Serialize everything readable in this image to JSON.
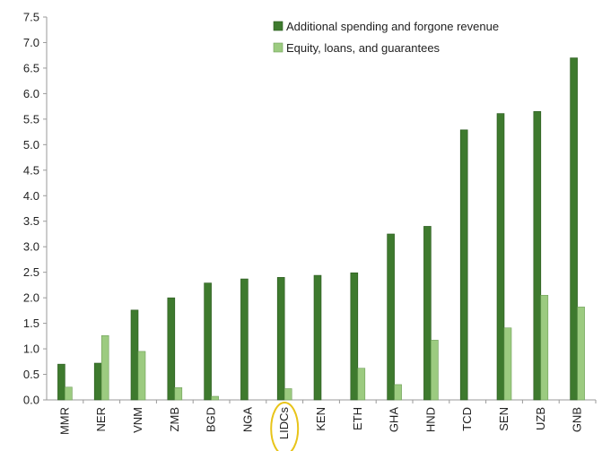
{
  "chart_data": {
    "type": "bar",
    "title": "",
    "xlabel": "",
    "ylabel": "",
    "ylim": [
      0,
      7.5
    ],
    "ytick_step": 0.5,
    "grid": false,
    "legend_position": "top-right",
    "categories": [
      "MMR",
      "NER",
      "VNM",
      "ZMB",
      "BGD",
      "NGA",
      "LIDCs",
      "KEN",
      "ETH",
      "GHA",
      "HND",
      "TCD",
      "SEN",
      "UZB",
      "GNB"
    ],
    "highlight_category": "LIDCs",
    "highlight_color": "#e8c41a",
    "series": [
      {
        "name": "Additional spending and forgone revenue",
        "color": "#3e7a2e",
        "stroke": "#2b5a1f",
        "values": [
          0.7,
          0.72,
          1.76,
          2.0,
          2.29,
          2.37,
          2.4,
          2.44,
          2.49,
          3.25,
          3.4,
          5.29,
          5.61,
          5.65,
          6.7
        ]
      },
      {
        "name": "Equity, loans, and guarantees",
        "color": "#9ccb80",
        "stroke": "#6f9e58",
        "values": [
          0.25,
          1.26,
          0.95,
          0.24,
          0.07,
          0.0,
          0.22,
          0.0,
          0.62,
          0.3,
          1.17,
          0.0,
          1.41,
          2.05,
          1.82
        ]
      }
    ]
  }
}
